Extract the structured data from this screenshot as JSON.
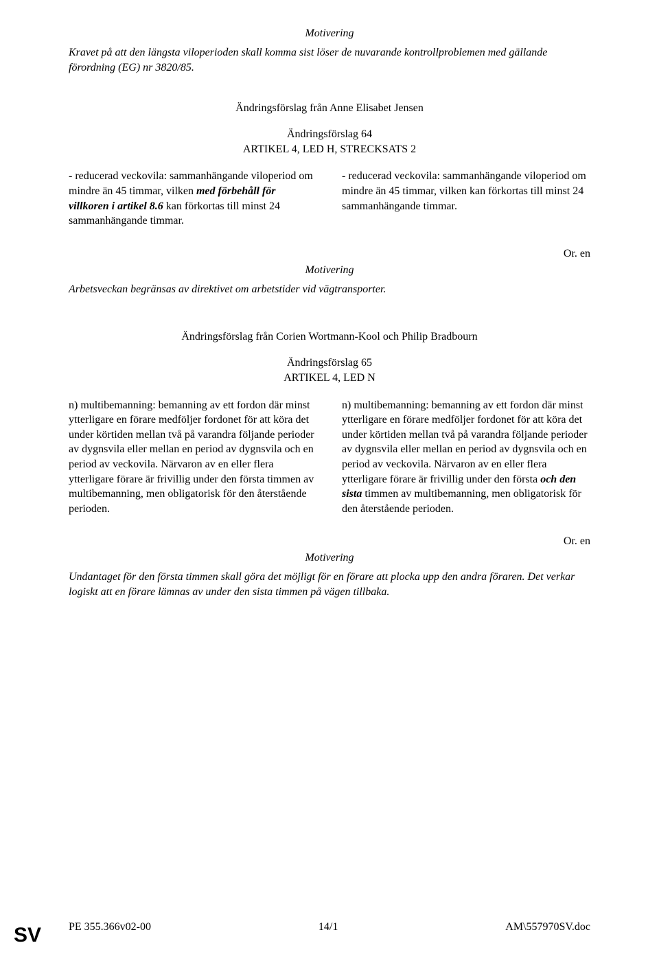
{
  "section1": {
    "motivering_label": "Motivering",
    "intro": "Kravet på att den längsta viloperioden skall komma sist löser de nuvarande kontrollproblemen med gällande förordning (EG) nr 3820/85.",
    "amendment_from": "Ändringsförslag från Anne Elisabet Jensen",
    "amendment_number": "Ändringsförslag 64",
    "article_ref": "ARTIKEL 4, LED H, STRECKSATS 2",
    "left_p1": "- reducerad veckovila: sammanhängande viloperiod om mindre än 45 timmar, vilken ",
    "left_p1_bi": "med förbehåll för villkoren i artikel 8.6",
    "left_p2": " kan förkortas till minst 24 sammanhängande timmar.",
    "right": "- reducerad veckovila: sammanhängande viloperiod om mindre än 45 timmar, vilken kan förkortas till minst 24 sammanhängande timmar.",
    "or_en": "Or. en",
    "motivering2_label": "Motivering",
    "justification": "Arbetsveckan begränsas av direktivet om arbetstider vid vägtransporter."
  },
  "section2": {
    "amendment_from": "Ändringsförslag från Corien Wortmann-Kool och Philip Bradbourn",
    "amendment_number": "Ändringsförslag 65",
    "article_ref": "ARTIKEL 4, LED N",
    "left": "n) multibemanning: bemanning av ett fordon där minst ytterligare en förare medföljer fordonet för att köra det under körtiden mellan två på varandra följande perioder av dygnsvila eller mellan en period av dygnsvila och en period av veckovila. Närvaron av en eller flera ytterligare förare är frivillig under den första timmen av multibemanning, men obligatorisk för den återstående perioden.",
    "right_p1": "n) multibemanning: bemanning av ett fordon där minst ytterligare en förare medföljer fordonet för att köra det under körtiden mellan två på varandra följande perioder av dygnsvila eller mellan en period av dygnsvila och en period av veckovila. Närvaron av en eller flera ytterligare förare är frivillig under den första ",
    "right_bi": "och den sista",
    "right_p2": " timmen av multibemanning, men obligatorisk för den återstående perioden.",
    "or_en": "Or. en",
    "motivering_label": "Motivering",
    "justification": "Undantaget för den första timmen skall göra det möjligt för en förare att plocka upp den andra föraren. Det verkar logiskt att en förare lämnas av under den sista timmen på vägen tillbaka."
  },
  "footer": {
    "left": "PE 355.366v02-00",
    "center": "14/1",
    "right": "AM\\557970SV.doc"
  },
  "sv_label": "SV"
}
